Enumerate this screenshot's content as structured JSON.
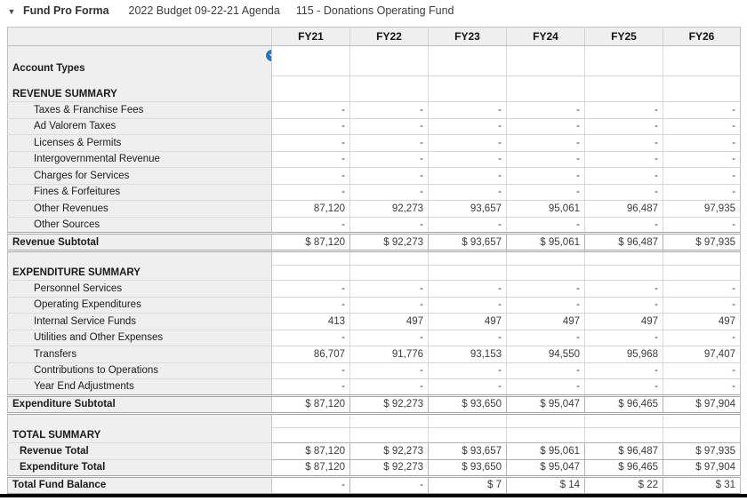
{
  "title_bar": {
    "collapse_icon": "▼",
    "title": "Fund Pro Forma",
    "subtitle1": "2022 Budget 09-22-21 Agenda",
    "subtitle2": "115 - Donations Operating Fund"
  },
  "colors": {
    "accent_blue": "#2e75b6",
    "label_bg": "#f0efef",
    "grid_line": "#d6d6d6",
    "subtotal_border": "#a6a6a6"
  },
  "table": {
    "columns": [
      "FY21",
      "FY22",
      "FY23",
      "FY24",
      "FY25",
      "FY26"
    ],
    "rows": [
      {
        "type": "account",
        "label": "Account Types",
        "values": [
          "",
          "",
          "",
          "",
          "",
          ""
        ]
      },
      {
        "type": "section",
        "label": "REVENUE SUMMARY",
        "values": [
          "",
          "",
          "",
          "",
          "",
          ""
        ]
      },
      {
        "type": "detail",
        "label": "Taxes & Franchise Fees",
        "values": [
          "-",
          "-",
          "-",
          "-",
          "-",
          "-"
        ]
      },
      {
        "type": "detail",
        "label": "Ad Valorem Taxes",
        "values": [
          "-",
          "-",
          "-",
          "-",
          "-",
          "-"
        ]
      },
      {
        "type": "detail",
        "label": "Licenses & Permits",
        "values": [
          "-",
          "-",
          "-",
          "-",
          "-",
          "-"
        ]
      },
      {
        "type": "detail",
        "label": "Intergovernmental Revenue",
        "values": [
          "-",
          "-",
          "-",
          "-",
          "-",
          "-"
        ]
      },
      {
        "type": "detail",
        "label": "Charges for Services",
        "values": [
          "-",
          "-",
          "-",
          "-",
          "-",
          "-"
        ]
      },
      {
        "type": "detail",
        "label": "Fines & Forfeitures",
        "values": [
          "-",
          "-",
          "-",
          "-",
          "-",
          "-"
        ]
      },
      {
        "type": "detail",
        "label": "Other Revenues",
        "values": [
          "87,120",
          "92,273",
          "93,657",
          "95,061",
          "96,487",
          "97,935"
        ]
      },
      {
        "type": "detail",
        "label": "Other Sources",
        "values": [
          "-",
          "-",
          "-",
          "-",
          "-",
          "-"
        ]
      },
      {
        "type": "subtotal",
        "label": "Revenue Subtotal",
        "values": [
          "$ 87,120",
          "$ 92,273",
          "$ 93,657",
          "$ 95,061",
          "$ 96,487",
          "$ 97,935"
        ]
      },
      {
        "type": "blank",
        "label": "",
        "values": [
          "",
          "",
          "",
          "",
          "",
          ""
        ]
      },
      {
        "type": "section",
        "label": "EXPENDITURE SUMMARY",
        "values": [
          "",
          "",
          "",
          "",
          "",
          ""
        ]
      },
      {
        "type": "detail",
        "label": "Personnel Services",
        "values": [
          "-",
          "-",
          "-",
          "-",
          "-",
          "-"
        ]
      },
      {
        "type": "detail",
        "label": "Operating Expenditures",
        "values": [
          "-",
          "-",
          "-",
          "-",
          "-",
          "-"
        ]
      },
      {
        "type": "detail",
        "label": "Internal Service Funds",
        "values": [
          "413",
          "497",
          "497",
          "497",
          "497",
          "497"
        ]
      },
      {
        "type": "detail",
        "label": "Utilities and Other Expenses",
        "values": [
          "-",
          "-",
          "-",
          "-",
          "-",
          "-"
        ]
      },
      {
        "type": "detail",
        "label": "Transfers",
        "values": [
          "86,707",
          "91,776",
          "93,153",
          "94,550",
          "95,968",
          "97,407"
        ]
      },
      {
        "type": "detail",
        "label": "Contributions to Operations",
        "values": [
          "-",
          "-",
          "-",
          "-",
          "-",
          "-"
        ]
      },
      {
        "type": "detail",
        "label": "Year End Adjustments",
        "values": [
          "-",
          "-",
          "-",
          "-",
          "-",
          "-"
        ]
      },
      {
        "type": "subtotal",
        "label": "Expenditure Subtotal",
        "values": [
          "$ 87,120",
          "$ 92,273",
          "$ 93,650",
          "$ 95,047",
          "$ 96,465",
          "$ 97,904"
        ]
      },
      {
        "type": "blank",
        "label": "",
        "values": [
          "",
          "",
          "",
          "",
          "",
          ""
        ]
      },
      {
        "type": "section",
        "label": "TOTAL SUMMARY",
        "values": [
          "",
          "",
          "",
          "",
          "",
          ""
        ]
      },
      {
        "type": "total",
        "label": "Revenue Total",
        "values": [
          "$ 87,120",
          "$ 92,273",
          "$ 93,657",
          "$ 95,061",
          "$ 96,487",
          "$ 97,935"
        ]
      },
      {
        "type": "total",
        "label": "Expenditure Total",
        "values": [
          "$ 87,120",
          "$ 92,273",
          "$ 93,650",
          "$ 95,047",
          "$ 96,465",
          "$ 97,904"
        ]
      },
      {
        "type": "grand",
        "label": "Total Fund Balance",
        "values": [
          "-",
          "-",
          "$ 7",
          "$ 14",
          "$ 22",
          "$ 31"
        ]
      }
    ]
  }
}
